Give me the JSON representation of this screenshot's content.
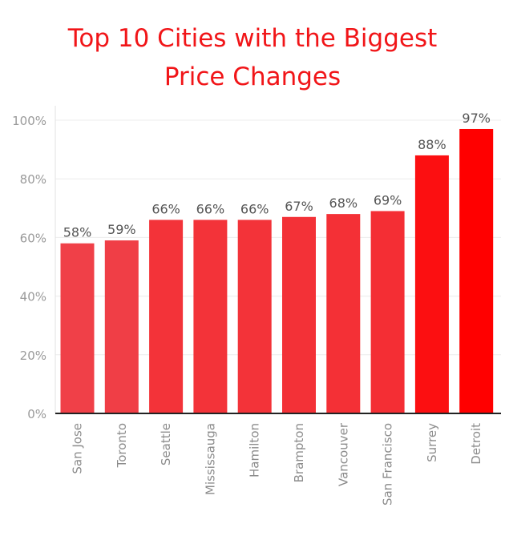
{
  "chart_data": {
    "type": "bar",
    "title_lines": [
      "Top 10 Cities with the Biggest",
      "Price Changes"
    ],
    "categories": [
      "San Jose",
      "Toronto",
      "Seattle",
      "Mississauga",
      "Hamilton",
      "Brampton",
      "Vancouver",
      "San Francisco",
      "Surrey",
      "Detroit"
    ],
    "values": [
      58,
      59,
      66,
      66,
      66,
      67,
      68,
      69,
      88,
      97
    ],
    "data_labels": [
      "58%",
      "59%",
      "66%",
      "66%",
      "66%",
      "67%",
      "68%",
      "69%",
      "88%",
      "97%"
    ],
    "y_ticks": [
      0,
      20,
      40,
      60,
      80,
      100
    ],
    "y_tick_labels": [
      "0%",
      "20%",
      "40%",
      "60%",
      "80%",
      "100%"
    ],
    "ylim": [
      0,
      100
    ],
    "grid": true,
    "color_low": "#f04048",
    "color_high": "#ff0000",
    "title_color": "#f11518"
  }
}
